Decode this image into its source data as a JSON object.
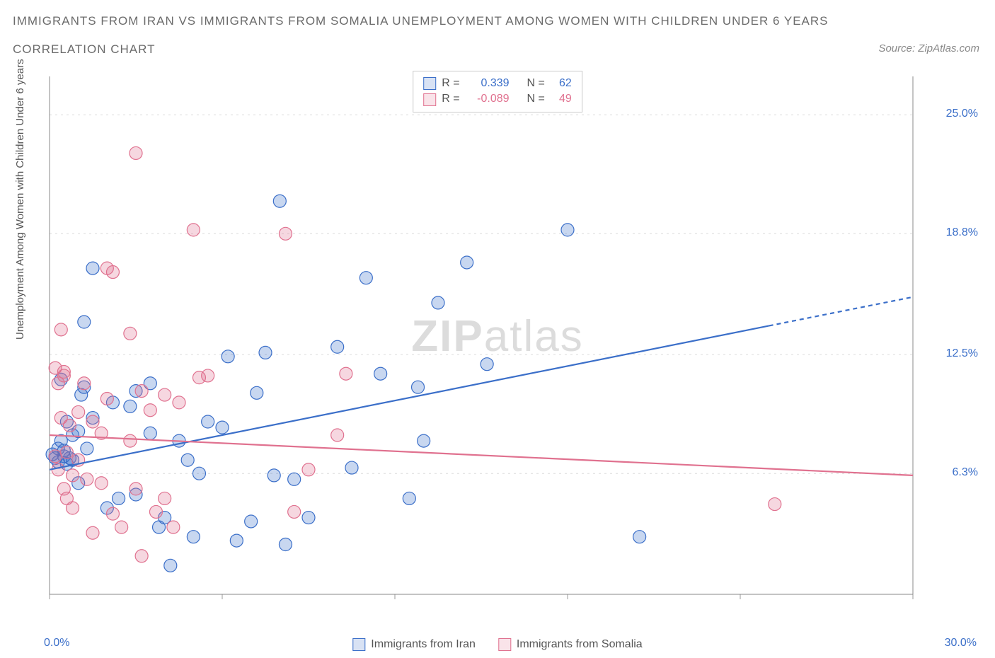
{
  "title_main": "Immigrants from Iran vs Immigrants from Somalia Unemployment Among Women with Children Under 6 years",
  "title_sub": "Correlation Chart",
  "source": "Source: ZipAtlas.com",
  "y_axis_label": "Unemployment Among Women with Children Under 6 years",
  "watermark_zip": "ZIP",
  "watermark_atlas": "atlas",
  "chart": {
    "type": "scatter",
    "background_color": "#ffffff",
    "grid_color": "#dcdcdc",
    "xlim": [
      0,
      30
    ],
    "ylim": [
      0,
      27
    ],
    "x_ticks": [
      0,
      6,
      12,
      18,
      24,
      30
    ],
    "x_tick_labels": [
      "0.0%",
      "",
      "",
      "",
      "",
      "30.0%"
    ],
    "y_ticks": [
      6.3,
      12.5,
      18.8,
      25.0
    ],
    "y_tick_labels": [
      "6.3%",
      "12.5%",
      "18.8%",
      "25.0%"
    ],
    "marker_radius": 9,
    "marker_fill_opacity": 0.28,
    "marker_stroke_width": 1.2,
    "line_width": 2.2,
    "series": [
      {
        "name": "Immigrants from Iran",
        "color": "#3b6fc9",
        "r": 0.339,
        "n": 62,
        "trend": {
          "y_at_x0": 6.5,
          "y_at_xmax": 15.5,
          "dash_from_x": 25
        },
        "points": [
          [
            0.1,
            7.3
          ],
          [
            0.2,
            7.1
          ],
          [
            0.3,
            7.6
          ],
          [
            0.3,
            6.9
          ],
          [
            0.4,
            8.0
          ],
          [
            0.4,
            11.2
          ],
          [
            0.5,
            7.2
          ],
          [
            0.5,
            7.5
          ],
          [
            0.6,
            6.8
          ],
          [
            0.6,
            9.0
          ],
          [
            0.7,
            7.1
          ],
          [
            0.8,
            7.0
          ],
          [
            0.8,
            8.3
          ],
          [
            1.0,
            8.5
          ],
          [
            1.0,
            5.8
          ],
          [
            1.1,
            10.4
          ],
          [
            1.2,
            10.8
          ],
          [
            1.2,
            14.2
          ],
          [
            1.3,
            7.6
          ],
          [
            1.5,
            9.2
          ],
          [
            1.5,
            17.0
          ],
          [
            2.0,
            4.5
          ],
          [
            2.2,
            10.0
          ],
          [
            2.4,
            5.0
          ],
          [
            2.8,
            9.8
          ],
          [
            3.0,
            5.2
          ],
          [
            3.0,
            10.6
          ],
          [
            3.5,
            11.0
          ],
          [
            3.5,
            8.4
          ],
          [
            3.8,
            3.5
          ],
          [
            4.0,
            4.0
          ],
          [
            4.2,
            1.5
          ],
          [
            4.5,
            8.0
          ],
          [
            4.8,
            7.0
          ],
          [
            5.0,
            3.0
          ],
          [
            5.2,
            6.3
          ],
          [
            5.5,
            9.0
          ],
          [
            6.0,
            8.7
          ],
          [
            6.2,
            12.4
          ],
          [
            6.5,
            2.8
          ],
          [
            7.0,
            3.8
          ],
          [
            7.2,
            10.5
          ],
          [
            7.5,
            12.6
          ],
          [
            7.8,
            6.2
          ],
          [
            8.0,
            20.5
          ],
          [
            8.2,
            2.6
          ],
          [
            8.5,
            6.0
          ],
          [
            9.0,
            4.0
          ],
          [
            10.0,
            12.9
          ],
          [
            10.5,
            6.6
          ],
          [
            11.0,
            16.5
          ],
          [
            11.5,
            11.5
          ],
          [
            12.5,
            5.0
          ],
          [
            12.8,
            10.8
          ],
          [
            13.0,
            8.0
          ],
          [
            13.5,
            15.2
          ],
          [
            14.5,
            17.3
          ],
          [
            15.2,
            12.0
          ],
          [
            18.0,
            19.0
          ],
          [
            20.5,
            3.0
          ]
        ]
      },
      {
        "name": "Immigrants from Somalia",
        "color": "#e0718f",
        "r": -0.089,
        "n": 49,
        "trend": {
          "y_at_x0": 8.3,
          "y_at_xmax": 6.2,
          "dash_from_x": null
        },
        "points": [
          [
            0.2,
            7.2
          ],
          [
            0.2,
            11.8
          ],
          [
            0.3,
            6.5
          ],
          [
            0.3,
            11.0
          ],
          [
            0.4,
            13.8
          ],
          [
            0.4,
            9.2
          ],
          [
            0.5,
            11.4
          ],
          [
            0.5,
            11.6
          ],
          [
            0.5,
            5.5
          ],
          [
            0.6,
            5.0
          ],
          [
            0.6,
            7.4
          ],
          [
            0.7,
            8.8
          ],
          [
            0.8,
            6.2
          ],
          [
            0.8,
            4.5
          ],
          [
            1.0,
            7.0
          ],
          [
            1.0,
            9.5
          ],
          [
            1.2,
            11.0
          ],
          [
            1.3,
            6.0
          ],
          [
            1.5,
            3.2
          ],
          [
            1.5,
            9.0
          ],
          [
            1.8,
            8.4
          ],
          [
            1.8,
            5.8
          ],
          [
            2.0,
            10.2
          ],
          [
            2.0,
            17.0
          ],
          [
            2.2,
            4.2
          ],
          [
            2.2,
            16.8
          ],
          [
            2.5,
            3.5
          ],
          [
            2.8,
            8.0
          ],
          [
            2.8,
            13.6
          ],
          [
            3.0,
            5.5
          ],
          [
            3.0,
            23.0
          ],
          [
            3.2,
            10.6
          ],
          [
            3.2,
            2.0
          ],
          [
            3.5,
            9.6
          ],
          [
            3.7,
            4.3
          ],
          [
            4.0,
            5.0
          ],
          [
            4.0,
            10.4
          ],
          [
            4.3,
            3.5
          ],
          [
            4.5,
            10.0
          ],
          [
            5.0,
            19.0
          ],
          [
            5.2,
            11.3
          ],
          [
            5.5,
            11.4
          ],
          [
            8.2,
            18.8
          ],
          [
            8.5,
            4.3
          ],
          [
            9.0,
            6.5
          ],
          [
            10.0,
            8.3
          ],
          [
            10.3,
            11.5
          ],
          [
            25.2,
            4.7
          ]
        ]
      }
    ]
  },
  "legend_stats": {
    "r_label": "R =",
    "n_label": "N ="
  }
}
